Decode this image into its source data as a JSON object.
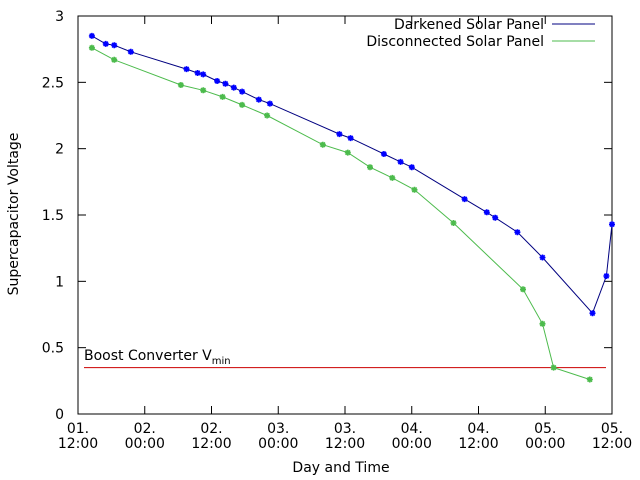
{
  "chart_data": {
    "type": "line",
    "title": "",
    "xlabel": "Day and Time",
    "ylabel": "Supercapacitor Voltage",
    "xlim": [
      "01. 12:00",
      "05. 12:00"
    ],
    "ylim": [
      0,
      3
    ],
    "grid": false,
    "legend": {
      "position": "top-right",
      "entries": [
        "Darkened Solar Panel",
        "Disconnected Solar Panel"
      ]
    },
    "x_ticks": [
      {
        "day": "01.",
        "time": "12:00"
      },
      {
        "day": "02.",
        "time": "00:00"
      },
      {
        "day": "02.",
        "time": "12:00"
      },
      {
        "day": "03.",
        "time": "00:00"
      },
      {
        "day": "03.",
        "time": "12:00"
      },
      {
        "day": "04.",
        "time": "00:00"
      },
      {
        "day": "04.",
        "time": "12:00"
      },
      {
        "day": "05.",
        "time": "00:00"
      },
      {
        "day": "05.",
        "time": "12:00"
      }
    ],
    "y_ticks": [
      "0",
      "0.5",
      "1",
      "1.5",
      "2",
      "2.5",
      "3"
    ],
    "series": [
      {
        "name": "Darkened Solar Panel",
        "color": "#0000ff",
        "line_color": "#000080",
        "points": [
          [
            "01. 14:30",
            2.85
          ],
          [
            "01. 17:00",
            2.79
          ],
          [
            "01. 18:30",
            2.78
          ],
          [
            "01. 21:30",
            2.73
          ],
          [
            "02. 07:30",
            2.6
          ],
          [
            "02. 09:30",
            2.57
          ],
          [
            "02. 10:30",
            2.56
          ],
          [
            "02. 13:00",
            2.51
          ],
          [
            "02. 14:30",
            2.49
          ],
          [
            "02. 16:00",
            2.46
          ],
          [
            "02. 17:30",
            2.43
          ],
          [
            "02. 20:30",
            2.37
          ],
          [
            "02. 22:30",
            2.34
          ],
          [
            "03. 11:00",
            2.11
          ],
          [
            "03. 13:00",
            2.08
          ],
          [
            "03. 19:00",
            1.96
          ],
          [
            "03. 22:00",
            1.9
          ],
          [
            "04. 00:00",
            1.86
          ],
          [
            "04. 09:30",
            1.62
          ],
          [
            "04. 13:30",
            1.52
          ],
          [
            "04. 15:00",
            1.48
          ],
          [
            "04. 19:00",
            1.37
          ],
          [
            "04. 23:30",
            1.18
          ],
          [
            "05. 08:30",
            0.76
          ],
          [
            "05. 11:00",
            1.04
          ],
          [
            "05. 12:00",
            1.43
          ]
        ]
      },
      {
        "name": "Disconnected Solar Panel",
        "color": "#4cbb4c",
        "line_color": "#4cbb4c",
        "points": [
          [
            "01. 14:30",
            2.76
          ],
          [
            "01. 18:30",
            2.67
          ],
          [
            "02. 06:30",
            2.48
          ],
          [
            "02. 10:30",
            2.44
          ],
          [
            "02. 14:00",
            2.39
          ],
          [
            "02. 17:30",
            2.33
          ],
          [
            "02. 22:00",
            2.25
          ],
          [
            "03. 08:00",
            2.03
          ],
          [
            "03. 12:30",
            1.97
          ],
          [
            "03. 16:30",
            1.86
          ],
          [
            "03. 20:30",
            1.78
          ],
          [
            "04. 00:30",
            1.69
          ],
          [
            "04. 07:30",
            1.44
          ],
          [
            "04. 20:00",
            0.94
          ],
          [
            "04. 23:30",
            0.68
          ],
          [
            "05. 01:30",
            0.35
          ],
          [
            "05. 08:00",
            0.26
          ]
        ]
      }
    ],
    "reference_line": {
      "label_main": "Boost Converter V",
      "label_sub": "min",
      "value": 0.35,
      "color": "#cc0000"
    }
  }
}
